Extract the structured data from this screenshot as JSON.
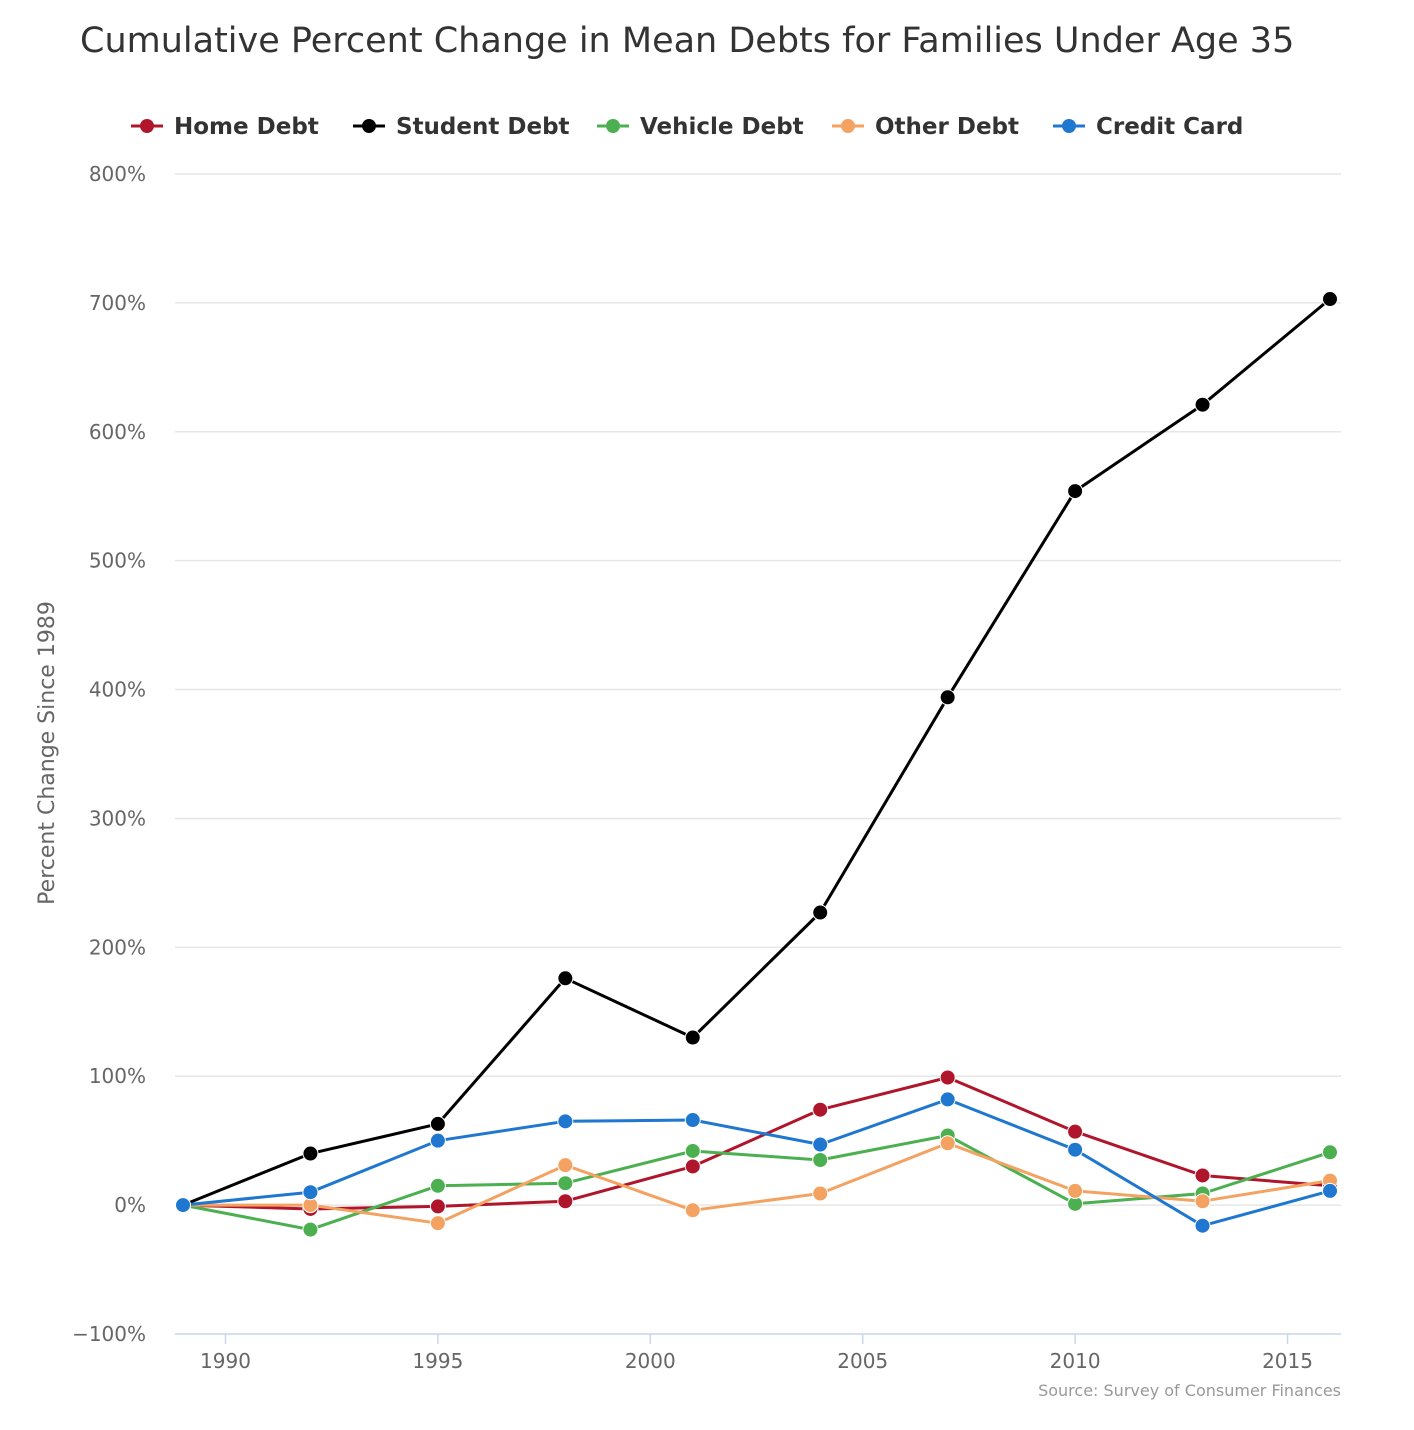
{
  "chart_data": {
    "type": "line",
    "title": "Cumulative Percent Change in Mean Debts for Families Under Age 35",
    "ylabel": "Percent Change Since 1989",
    "xlabel": "",
    "source": "Source: Survey of Consumer Finances",
    "ylim": [
      -100,
      800
    ],
    "xlim": [
      1989,
      2016
    ],
    "y_ticks": [
      -100,
      0,
      100,
      200,
      300,
      400,
      500,
      600,
      700,
      800
    ],
    "y_tick_labels": [
      "−100%",
      "0%",
      "100%",
      "200%",
      "300%",
      "400%",
      "500%",
      "600%",
      "700%",
      "800%"
    ],
    "x_ticks": [
      1990,
      1995,
      2000,
      2005,
      2010,
      2015
    ],
    "x_tick_labels": [
      "1990",
      "1995",
      "2000",
      "2005",
      "2010",
      "2015"
    ],
    "grid": true,
    "legend_position": "top-left",
    "x": [
      1989,
      1992,
      1995,
      1998,
      2001,
      2004,
      2007,
      2010,
      2013,
      2016
    ],
    "series": [
      {
        "name": "Home Debt",
        "color": "#b0162b",
        "values": [
          0,
          -3,
          -1,
          3,
          30,
          74,
          99,
          57,
          23,
          15
        ]
      },
      {
        "name": "Student Debt",
        "color": "#000000",
        "values": [
          0,
          40,
          63,
          176,
          130,
          227,
          394,
          554,
          621,
          703
        ]
      },
      {
        "name": "Vehicle Debt",
        "color": "#4caf50",
        "values": [
          0,
          -19,
          15,
          17,
          42,
          35,
          54,
          1,
          9,
          41
        ]
      },
      {
        "name": "Other Debt",
        "color": "#f4a261",
        "values": [
          0,
          0,
          -14,
          31,
          -4,
          9,
          48,
          11,
          3,
          19
        ]
      },
      {
        "name": "Credit Card",
        "color": "#1f77d0",
        "values": [
          0,
          10,
          50,
          65,
          66,
          47,
          82,
          43,
          -16,
          11
        ]
      }
    ]
  }
}
